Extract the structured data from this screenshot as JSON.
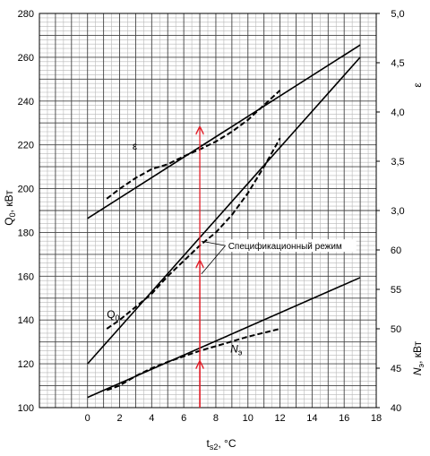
{
  "chart_data": {
    "type": "line",
    "x_axis": {
      "label": "t",
      "label_sub": "s2",
      "label_unit": ", °C",
      "range": [
        -3,
        18
      ],
      "ticks": [
        0,
        2,
        4,
        6,
        8,
        10,
        12,
        14,
        16,
        18
      ]
    },
    "y_left": {
      "label": "Q",
      "label_sub": "0",
      "label_unit": ", кВт",
      "range": [
        100,
        280
      ],
      "ticks": [
        100,
        120,
        140,
        160,
        180,
        200,
        220,
        240,
        260,
        280
      ]
    },
    "y_right_eps": {
      "label": "ε",
      "range": [
        1.0,
        5.0
      ],
      "ticks": [
        3.0,
        3.5,
        4.0,
        4.5,
        5.0
      ],
      "tick_labels": [
        "3,0",
        "3,5",
        "4,0",
        "4,5",
        "5,0"
      ]
    },
    "y_right_n": {
      "label": "N",
      "label_sub": "э",
      "label_unit": ", кВт",
      "range": [
        40,
        90
      ],
      "ticks": [
        40,
        45,
        50,
        55,
        60
      ],
      "tick_labels": [
        "40",
        "45",
        "50",
        "55",
        "60"
      ]
    },
    "series": [
      {
        "name": "ε",
        "axis": "eps",
        "style": "solid",
        "x": [
          0,
          17
        ],
        "y": [
          2.92,
          4.68
        ]
      },
      {
        "name": "",
        "axis": "eps",
        "style": "dashed",
        "x": [
          1.2,
          2.0,
          3.0,
          4.0,
          5.0,
          6.0,
          7.0,
          8.0,
          9.0,
          10.0,
          11.0,
          12.0
        ],
        "y": [
          3.12,
          3.22,
          3.33,
          3.42,
          3.47,
          3.55,
          3.62,
          3.7,
          3.8,
          3.92,
          4.07,
          4.22
        ]
      },
      {
        "name": "Q₀",
        "axis": "left",
        "style": "solid",
        "x": [
          0,
          17
        ],
        "y": [
          120,
          260
        ]
      },
      {
        "name": "",
        "axis": "left",
        "style": "dashed",
        "x": [
          1.2,
          2.0,
          3.0,
          4.0,
          5.0,
          6.0,
          7.0,
          8.0,
          9.0,
          10.0,
          11.0,
          12.0
        ],
        "y": [
          136,
          140,
          146,
          152,
          160,
          167,
          174,
          180,
          188,
          198,
          210,
          223
        ]
      },
      {
        "name": "Nэ",
        "axis": "n",
        "style": "solid",
        "x": [
          0,
          17
        ],
        "y": [
          41.3,
          56.5
        ]
      },
      {
        "name": "",
        "axis": "n",
        "style": "dashed",
        "x": [
          1.2,
          2.0,
          3.0,
          4.0,
          5.0,
          6.0,
          7.0,
          8.0,
          9.0,
          10.0,
          11.0,
          12.0
        ],
        "y": [
          42.2,
          42.8,
          44.0,
          45.0,
          45.8,
          46.5,
          47.2,
          47.8,
          48.4,
          49.0,
          49.5,
          50.0
        ]
      }
    ],
    "series_labels": [
      {
        "text": "ε",
        "axis": "eps",
        "x": 2.8,
        "y": 3.62
      },
      {
        "text": "Q",
        "sub": "0",
        "axis": "left",
        "x": 1.2,
        "y": 141
      },
      {
        "text": "N",
        "sub": "э",
        "axis": "n",
        "x": 8.9,
        "y": 47.0
      }
    ],
    "annotation": {
      "text": "Спецификационный режим",
      "x": 7,
      "text_anchor": {
        "x": 8.6,
        "y": 174
      },
      "leaders": [
        {
          "x": 7.1,
          "y": 176
        },
        {
          "x": 7.1,
          "y": 161
        }
      ],
      "arrows": [
        {
          "from_y": 100,
          "to_y": 121
        },
        {
          "from_y": 100,
          "to_y": 167
        },
        {
          "from_y": 100,
          "to_y": 228
        }
      ],
      "color": "#e0202a"
    },
    "grid": "major and minor",
    "colors": {
      "lines": "#000000",
      "grid_major": "#444444",
      "grid_minor": "#b8b8b8",
      "annotation": "#e0202a"
    }
  }
}
